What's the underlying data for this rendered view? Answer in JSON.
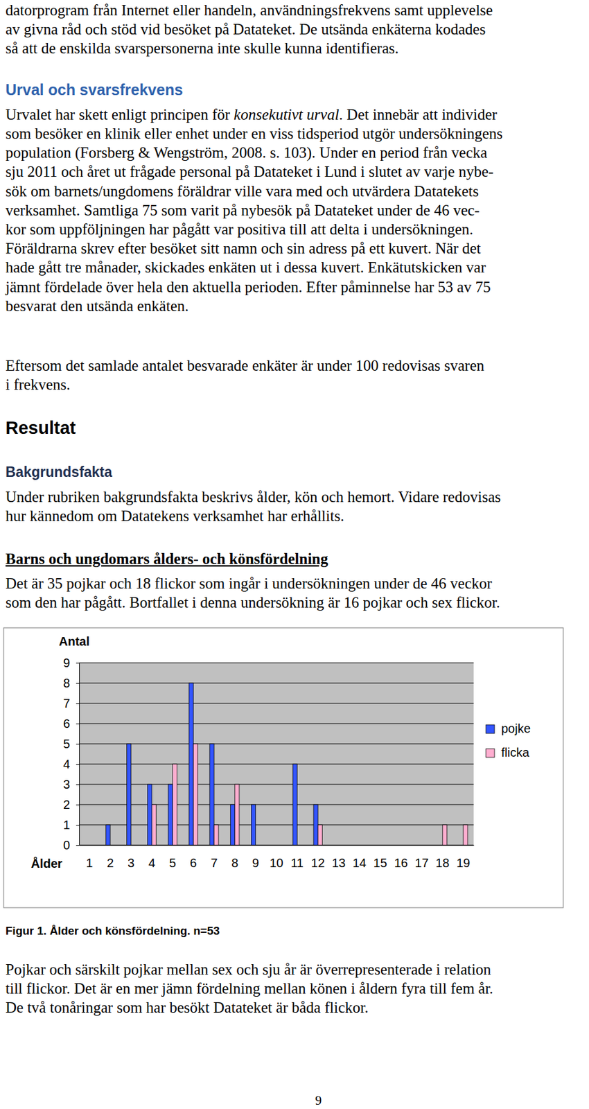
{
  "document": {
    "blocks": [
      {
        "style": "body",
        "lines": [
          "datorprogram från Internet eller handeln, användningsfrekvens samt upplevelse",
          "av givna råd och stöd vid besöket på Datateket. De utsända enkäterna kodades",
          "så att de enskilda svarspersonerna inte skulle kunna identifieras."
        ]
      },
      {
        "style": "heading_blue",
        "text": "Urval och svarsfrekvens"
      },
      {
        "style": "body",
        "lines": [
          [
            "Urvalet har skett enligt principen för ",
            {
              "italic": "konsekutivt urval"
            },
            ". Det innebär att individer"
          ],
          "som besöker en klinik eller enhet under en viss tidsperiod utgör undersökningens",
          "population (Forsberg & Wengström, 2008. s. 103). Under en period från vecka",
          "sju 2011 och året ut frågade personal på Datateket i Lund i slutet av varje nybe-",
          "sök om barnets/ungdomens föräldrar ville vara med och utvärdera Datatekets",
          "verksamhet. Samtliga 75 som varit på nybesök på Datateket under de 46 vec-",
          "kor som uppföljningen har pågått var positiva till att delta i undersökningen.",
          "Föräldrarna skrev efter besöket sitt namn och sin adress på ett kuvert. När det",
          "hade gått tre månader, skickades enkäten ut i dessa kuvert. Enkätutskicken var",
          "jämnt fördelade över hela den aktuella perioden. Efter påminnelse har 53 av 75",
          "besvarat den utsända enkäten."
        ]
      },
      {
        "style": "body",
        "lines": [
          "Eftersom det samlade antalet besvarade enkäter är under 100 redovisas svaren",
          "i frekvens."
        ]
      },
      {
        "style": "heading_large",
        "text": "Resultat"
      },
      {
        "style": "heading_sub",
        "text": "Bakgrundsfakta"
      },
      {
        "style": "body",
        "lines": [
          "Under rubriken bakgrundsfakta beskrivs ålder, kön och hemort. Vidare redovisas",
          "hur kännedom om Datatekens verksamhet har erhållits."
        ]
      },
      {
        "style": "heading_underlined",
        "text": "Barns och ungdomars ålders- och könsfördelning"
      },
      {
        "style": "body",
        "lines": [
          "Det är 35 pojkar och 18 flickor som ingår i undersökningen under de 46 veckor",
          "som den har pågått. Bortfallet i denna undersökning är 16 pojkar och sex flickor."
        ]
      },
      {
        "style": "caption",
        "text": "Figur 1. Ålder och könsfördelning. n=53"
      },
      {
        "style": "body",
        "lines": [
          "Pojkar och särskilt pojkar mellan sex och sju år är överrepresenterade i relation",
          "till flickor. Det är en mer jämn fördelning mellan könen i åldern fyra till fem år.",
          "De två tonåringar som har besökt Datateket är båda flickor."
        ]
      },
      {
        "style": "page_number",
        "text": "9"
      }
    ]
  },
  "chart_data": {
    "type": "bar",
    "x_label": "Ålder",
    "y_label": "Antal",
    "categories": [
      "1",
      "2",
      "3",
      "4",
      "5",
      "6",
      "7",
      "8",
      "9",
      "10",
      "11",
      "12",
      "13",
      "14",
      "15",
      "16",
      "17",
      "18",
      "19"
    ],
    "series": [
      {
        "name": "pojke",
        "color": "#3355ff",
        "values": [
          0,
          1,
          5,
          3,
          3,
          8,
          5,
          2,
          2,
          0,
          4,
          2,
          0,
          0,
          0,
          0,
          0,
          0,
          0
        ]
      },
      {
        "name": "flicka",
        "color": "#ffaed0",
        "values": [
          0,
          0,
          0,
          2,
          4,
          5,
          1,
          3,
          0,
          0,
          0,
          1,
          0,
          0,
          0,
          0,
          0,
          1,
          1
        ]
      }
    ],
    "ylim": [
      0,
      9
    ],
    "yticks": [
      0,
      1,
      2,
      3,
      4,
      5,
      6,
      7,
      8,
      9
    ],
    "grid": true,
    "legend": "right"
  }
}
